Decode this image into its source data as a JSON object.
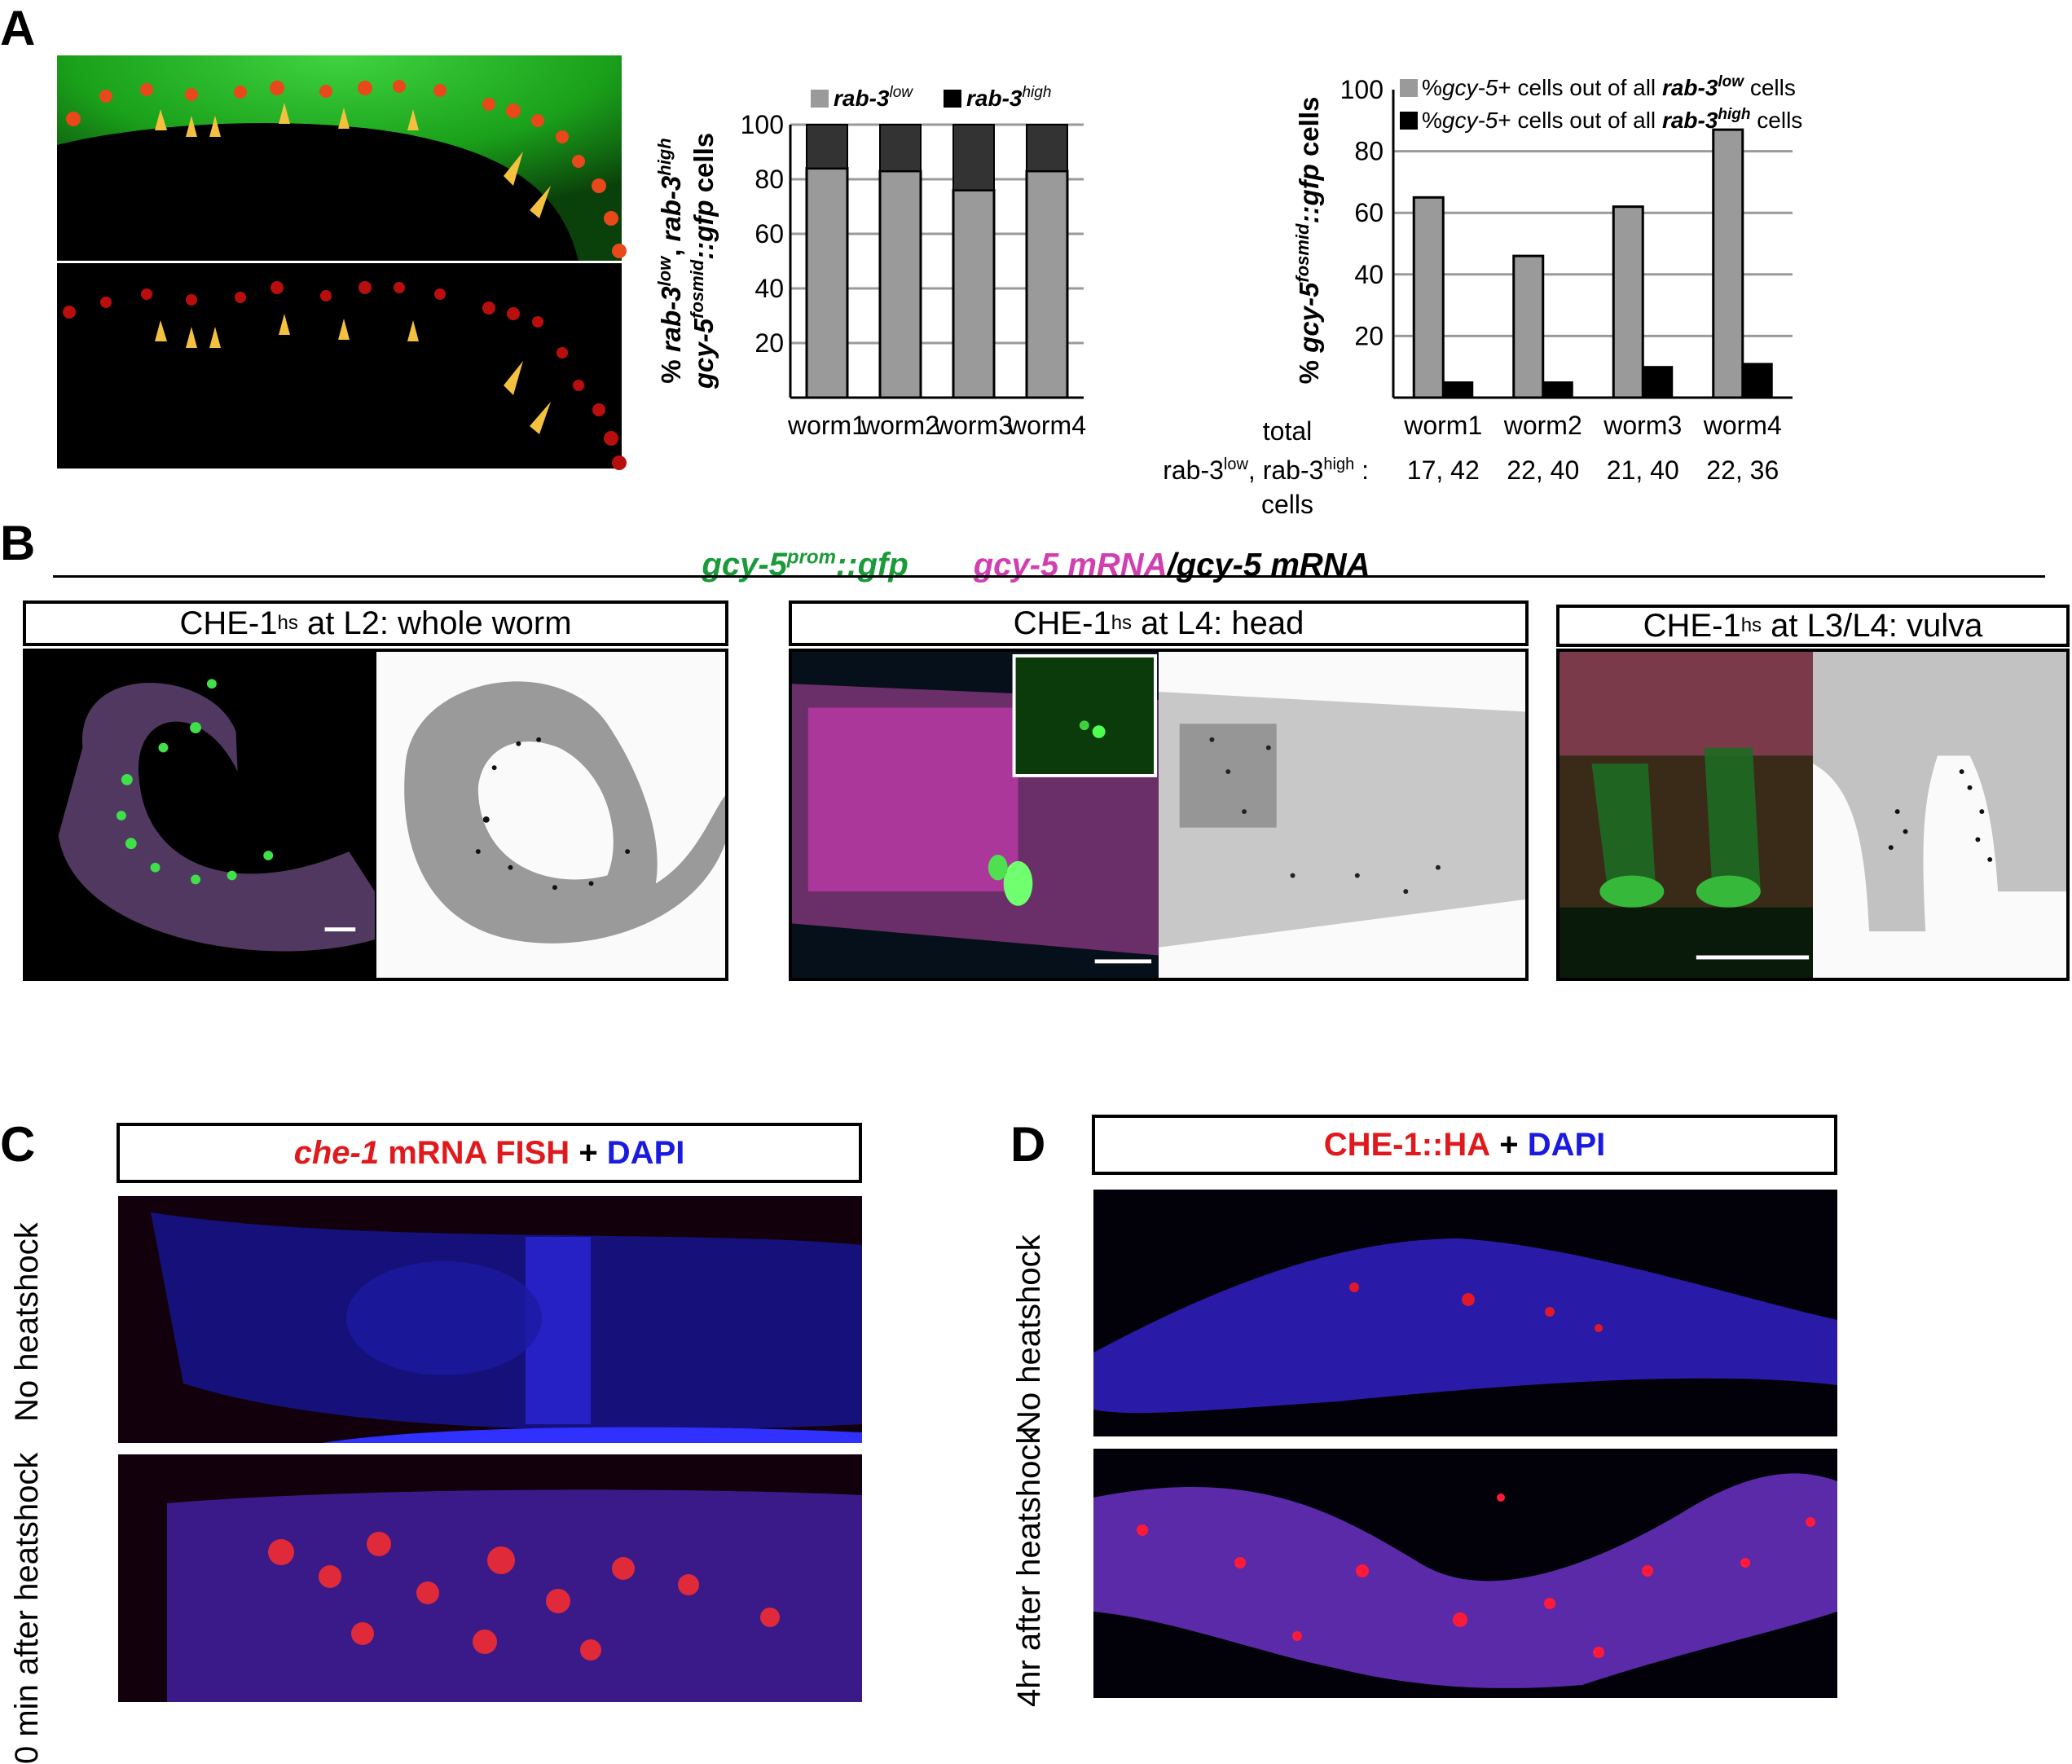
{
  "panels": {
    "A": "A",
    "B": "B",
    "C": "C",
    "D": "D"
  },
  "panel_b": {
    "header": {
      "green": "gcy-5",
      "green_sup": "prom",
      "green_rest": "::gfp",
      "magenta": "gcy-5 mRNA",
      "slash": "/",
      "black": "gcy-5 mRNA"
    },
    "boxes": [
      {
        "pre": "CHE-1",
        "sup": "hs",
        "post": " at L2: whole worm"
      },
      {
        "pre": "CHE-1",
        "sup": "hs",
        "post": " at L4: head"
      },
      {
        "pre": "CHE-1",
        "sup": "hs",
        "post": " at L3/L4: vulva"
      }
    ]
  },
  "panel_c": {
    "title_italic": "che-1",
    "title_rest": " mRNA FISH",
    "plus": " + ",
    "dapi": "DAPI",
    "rows": [
      "No heatshock",
      "0 min after heatshock"
    ]
  },
  "panel_d": {
    "title_red": "CHE-1::HA",
    "plus": " + ",
    "dapi": "DAPI",
    "rows": [
      "No heatshock",
      "4hr after heatshock"
    ]
  },
  "colors": {
    "bar_low": "#9a9a9a",
    "bar_high_stack": "#333333",
    "bar_high": "#000000",
    "grid": "#9a9a9a",
    "green": "#1a9a3a",
    "magenta": "#d040b0",
    "red": "#e0191c",
    "blue": "#1a1ae0",
    "arrow": "#f2b63c"
  },
  "chart_data": [
    {
      "type": "bar",
      "stacked": true,
      "categories": [
        "worm1",
        "worm2",
        "worm3",
        "worm4"
      ],
      "series": [
        {
          "name": "rab-3 low",
          "values": [
            84,
            83,
            76,
            83
          ]
        },
        {
          "name": "rab-3 high",
          "values": [
            16,
            17,
            24,
            17
          ]
        }
      ],
      "legend": [
        {
          "base": "rab-3",
          "sup": "low"
        },
        {
          "base": "rab-3",
          "sup": "high"
        }
      ],
      "ylabel_line1": {
        "pre": "% ",
        "i1": "rab-3",
        "s1": "low",
        "mid": ", ",
        "i2": "rab-3",
        "s2": "high"
      },
      "ylabel_line2": {
        "i1": "gcy-5",
        "s1": "fosmid",
        "i2": "::gfp",
        "rest": " cells"
      },
      "yticks": [
        20,
        40,
        60,
        80,
        100
      ],
      "ylim": [
        0,
        100
      ],
      "grid": true,
      "legend_position": "top"
    },
    {
      "type": "bar",
      "categories": [
        "worm1",
        "worm2",
        "worm3",
        "worm4"
      ],
      "series": [
        {
          "name": "%gcy-5+ cells out of all rab-3 low cells",
          "values": [
            65,
            46,
            62,
            87
          ]
        },
        {
          "name": "%gcy-5+ cells out of all rab-3 high cells",
          "values": [
            5,
            5,
            10,
            11
          ]
        }
      ],
      "legend": [
        {
          "pre": "%",
          "i": "gcy-5",
          "mid": "+ cells out of all ",
          "b": "rab-3",
          "sup": "low",
          "post": " cells"
        },
        {
          "pre": "%",
          "i": "gcy-5",
          "mid": "+ cells out of all ",
          "b": "rab-3",
          "sup": "high",
          "post": " cells"
        }
      ],
      "ylabel": {
        "pre": "% ",
        "i1": "gcy-5",
        "s1": "fosmid",
        "i2": "::gfp",
        "rest": " cells"
      },
      "yticks": [
        20,
        40,
        60,
        80,
        100
      ],
      "ylim": [
        0,
        100
      ],
      "grid": true,
      "legend_position": "top",
      "totals_label": {
        "line1": "total",
        "line2_pre": "rab-3",
        "sup1": "low",
        "line2_mid": ", rab-3",
        "sup2": "high",
        "line2_post": " :",
        "line3": "cells"
      },
      "totals": [
        "17, 42",
        "22, 40",
        "21, 40",
        "22, 36"
      ]
    }
  ]
}
